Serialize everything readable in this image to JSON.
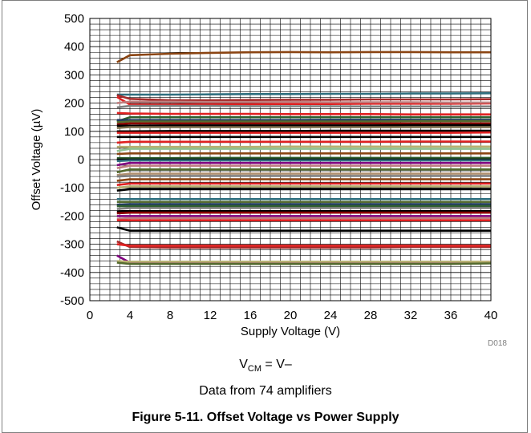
{
  "chart_data": {
    "type": "line",
    "title": "",
    "xlabel": "Supply Voltage (V)",
    "ylabel": "Offset Voltage (µV)",
    "xlim": [
      0,
      40
    ],
    "ylim": [
      -500,
      500
    ],
    "xticks": [
      0,
      4,
      8,
      12,
      16,
      20,
      24,
      28,
      32,
      36,
      40
    ],
    "yticks": [
      -500,
      -400,
      -300,
      -200,
      -100,
      0,
      100,
      200,
      300,
      400,
      500
    ],
    "x_tick_labels": [
      "0",
      "4",
      "8",
      "12",
      "16",
      "20",
      "24",
      "28",
      "32",
      "36",
      "40"
    ],
    "y_tick_labels": [
      "-500",
      "-400",
      "-300",
      "-200",
      "-100",
      "0",
      "100",
      "200",
      "300",
      "400",
      "500"
    ],
    "grid": true,
    "legend": "none",
    "x": [
      2.7,
      4,
      8,
      12,
      16,
      20,
      24,
      28,
      32,
      36,
      40
    ],
    "figure_code": "D018",
    "series": [
      {
        "color": "#8B4513",
        "values": [
          345,
          370,
          375,
          378,
          380,
          381,
          380,
          381,
          381,
          380,
          380
        ]
      },
      {
        "color": "#2F6F7F",
        "values": [
          230,
          230,
          230,
          231,
          232,
          232,
          233,
          233,
          234,
          234,
          235
        ]
      },
      {
        "color": "#A52A2A",
        "values": [
          228,
          215,
          210,
          210,
          211,
          212,
          212,
          213,
          213,
          213,
          214
        ]
      },
      {
        "color": "#E02020",
        "values": [
          222,
          195,
          195,
          196,
          196,
          197,
          197,
          198,
          198,
          198,
          199
        ]
      },
      {
        "color": "#C08080",
        "values": [
          200,
          205,
          205,
          204,
          204,
          204,
          203,
          203,
          203,
          202,
          202
        ]
      },
      {
        "color": "#808080",
        "values": [
          185,
          190,
          190,
          190,
          189,
          189,
          189,
          188,
          188,
          188,
          188
        ]
      },
      {
        "color": "#E02020",
        "values": [
          165,
          163,
          162,
          162,
          162,
          161,
          161,
          161,
          160,
          160,
          160
        ]
      },
      {
        "color": "#2E5E2E",
        "values": [
          135,
          150,
          150,
          150,
          150,
          150,
          150,
          150,
          150,
          150,
          150
        ]
      },
      {
        "color": "#1F3A5F",
        "values": [
          140,
          140,
          140,
          140,
          140,
          140,
          141,
          141,
          141,
          141,
          141
        ]
      },
      {
        "color": "#556B2F",
        "values": [
          132,
          135,
          135,
          135,
          135,
          135,
          135,
          135,
          136,
          136,
          136
        ]
      },
      {
        "color": "#8B0000",
        "values": [
          125,
          128,
          128,
          128,
          128,
          128,
          128,
          128,
          128,
          128,
          128
        ]
      },
      {
        "color": "#000000",
        "values": [
          120,
          120,
          121,
          121,
          121,
          121,
          121,
          121,
          122,
          122,
          122
        ]
      },
      {
        "color": "#7A6A4A",
        "values": [
          112,
          115,
          115,
          115,
          115,
          115,
          115,
          115,
          115,
          115,
          115
        ]
      },
      {
        "color": "#000000",
        "values": [
          100,
          100,
          101,
          101,
          101,
          101,
          102,
          102,
          102,
          102,
          102
        ]
      },
      {
        "color": "#E02020",
        "values": [
          95,
          95,
          95,
          95,
          95,
          95,
          95,
          95,
          95,
          95,
          96
        ]
      },
      {
        "color": "#000000",
        "values": [
          80,
          80,
          80,
          80,
          80,
          80,
          80,
          80,
          80,
          80,
          80
        ]
      },
      {
        "color": "#E02020",
        "values": [
          60,
          63,
          63,
          63,
          63,
          63,
          63,
          63,
          64,
          64,
          64
        ]
      },
      {
        "color": "#B8B070",
        "values": [
          45,
          45,
          45,
          45,
          45,
          46,
          46,
          46,
          46,
          46,
          46
        ]
      },
      {
        "color": "#90C090",
        "values": [
          30,
          38,
          38,
          38,
          38,
          38,
          38,
          38,
          38,
          38,
          38
        ]
      },
      {
        "color": "#8B4513",
        "values": [
          20,
          22,
          22,
          22,
          22,
          22,
          22,
          22,
          22,
          22,
          22
        ]
      },
      {
        "color": "#2E5E2E",
        "values": [
          5,
          5,
          5,
          6,
          6,
          6,
          6,
          6,
          6,
          6,
          6
        ]
      },
      {
        "color": "#000000",
        "values": [
          0,
          0,
          0,
          0,
          0,
          0,
          0,
          0,
          0,
          0,
          0
        ]
      },
      {
        "color": "#2F6F7F",
        "values": [
          -5,
          -3,
          -3,
          -3,
          -3,
          -3,
          -3,
          -3,
          -3,
          -3,
          -3
        ]
      },
      {
        "color": "#800080",
        "values": [
          -20,
          -12,
          -12,
          -12,
          -12,
          -12,
          -12,
          -12,
          -12,
          -12,
          -12
        ]
      },
      {
        "color": "#C08080",
        "values": [
          -30,
          -22,
          -22,
          -22,
          -22,
          -22,
          -22,
          -22,
          -22,
          -22,
          -22
        ]
      },
      {
        "color": "#556B2F",
        "values": [
          -45,
          -35,
          -35,
          -35,
          -35,
          -35,
          -35,
          -35,
          -35,
          -35,
          -35
        ]
      },
      {
        "color": "#B09070",
        "values": [
          -55,
          -50,
          -50,
          -50,
          -50,
          -50,
          -50,
          -50,
          -50,
          -50,
          -50
        ]
      },
      {
        "color": "#808080",
        "values": [
          -60,
          -58,
          -58,
          -58,
          -58,
          -58,
          -58,
          -58,
          -58,
          -58,
          -58
        ]
      },
      {
        "color": "#8B4513",
        "values": [
          -75,
          -70,
          -70,
          -70,
          -70,
          -70,
          -70,
          -70,
          -70,
          -70,
          -70
        ]
      },
      {
        "color": "#E02020",
        "values": [
          -90,
          -85,
          -85,
          -85,
          -85,
          -85,
          -85,
          -85,
          -85,
          -85,
          -85
        ]
      },
      {
        "color": "#B8B070",
        "values": [
          -100,
          -95,
          -95,
          -95,
          -95,
          -95,
          -95,
          -95,
          -95,
          -95,
          -95
        ]
      },
      {
        "color": "#000000",
        "values": [
          -110,
          -105,
          -105,
          -105,
          -105,
          -105,
          -105,
          -105,
          -105,
          -105,
          -105
        ]
      },
      {
        "color": "#2F6F7F",
        "values": [
          -140,
          -140,
          -140,
          -140,
          -140,
          -140,
          -140,
          -140,
          -140,
          -140,
          -140
        ]
      },
      {
        "color": "#556B2F",
        "values": [
          -150,
          -150,
          -150,
          -150,
          -150,
          -150,
          -150,
          -150,
          -150,
          -150,
          -150
        ]
      },
      {
        "color": "#1F3A5F",
        "values": [
          -160,
          -158,
          -158,
          -158,
          -158,
          -158,
          -158,
          -158,
          -158,
          -158,
          -158
        ]
      },
      {
        "color": "#2E5E2E",
        "values": [
          -165,
          -165,
          -165,
          -165,
          -165,
          -165,
          -165,
          -165,
          -165,
          -165,
          -165
        ]
      },
      {
        "color": "#808080",
        "values": [
          -175,
          -172,
          -172,
          -172,
          -172,
          -172,
          -172,
          -172,
          -172,
          -172,
          -172
        ]
      },
      {
        "color": "#000000",
        "values": [
          -185,
          -183,
          -183,
          -183,
          -183,
          -183,
          -183,
          -183,
          -183,
          -183,
          -183
        ]
      },
      {
        "color": "#8B0000",
        "values": [
          -190,
          -188,
          -188,
          -188,
          -188,
          -188,
          -188,
          -188,
          -188,
          -188,
          -188
        ]
      },
      {
        "color": "#800080",
        "values": [
          -200,
          -200,
          -200,
          -200,
          -200,
          -200,
          -200,
          -200,
          -200,
          -200,
          -200
        ]
      },
      {
        "color": "#C08080",
        "values": [
          -210,
          -207,
          -207,
          -207,
          -207,
          -207,
          -207,
          -207,
          -207,
          -207,
          -207
        ]
      },
      {
        "color": "#E02020",
        "values": [
          -215,
          -215,
          -215,
          -215,
          -215,
          -215,
          -215,
          -215,
          -215,
          -215,
          -215
        ]
      },
      {
        "color": "#000000",
        "values": [
          -240,
          -252,
          -252,
          -252,
          -252,
          -252,
          -252,
          -252,
          -252,
          -252,
          -252
        ]
      },
      {
        "color": "#A52A2A",
        "values": [
          -290,
          -310,
          -312,
          -312,
          -312,
          -312,
          -312,
          -312,
          -310,
          -310,
          -310
        ]
      },
      {
        "color": "#E02020",
        "values": [
          -300,
          -305,
          -305,
          -305,
          -305,
          -305,
          -305,
          -305,
          -305,
          -305,
          -305
        ]
      },
      {
        "color": "#800080",
        "values": [
          -340,
          -365,
          -368,
          -368,
          -368,
          -368,
          -368,
          -368,
          -368,
          -366,
          -362
        ]
      },
      {
        "color": "#B8B070",
        "values": [
          -360,
          -362,
          -362,
          -362,
          -362,
          -362,
          -362,
          -362,
          -362,
          -362,
          -362
        ]
      },
      {
        "color": "#556B2F",
        "values": [
          -365,
          -370,
          -370,
          -370,
          -370,
          -370,
          -370,
          -370,
          -370,
          -370,
          -368
        ]
      }
    ]
  },
  "conditions": {
    "vcm_main": "V",
    "vcm_sub": "CM",
    "vcm_rest": " = V–",
    "note": "Data from 74 amplifiers"
  },
  "caption": "Figure 5-11. Offset Voltage vs Power Supply"
}
